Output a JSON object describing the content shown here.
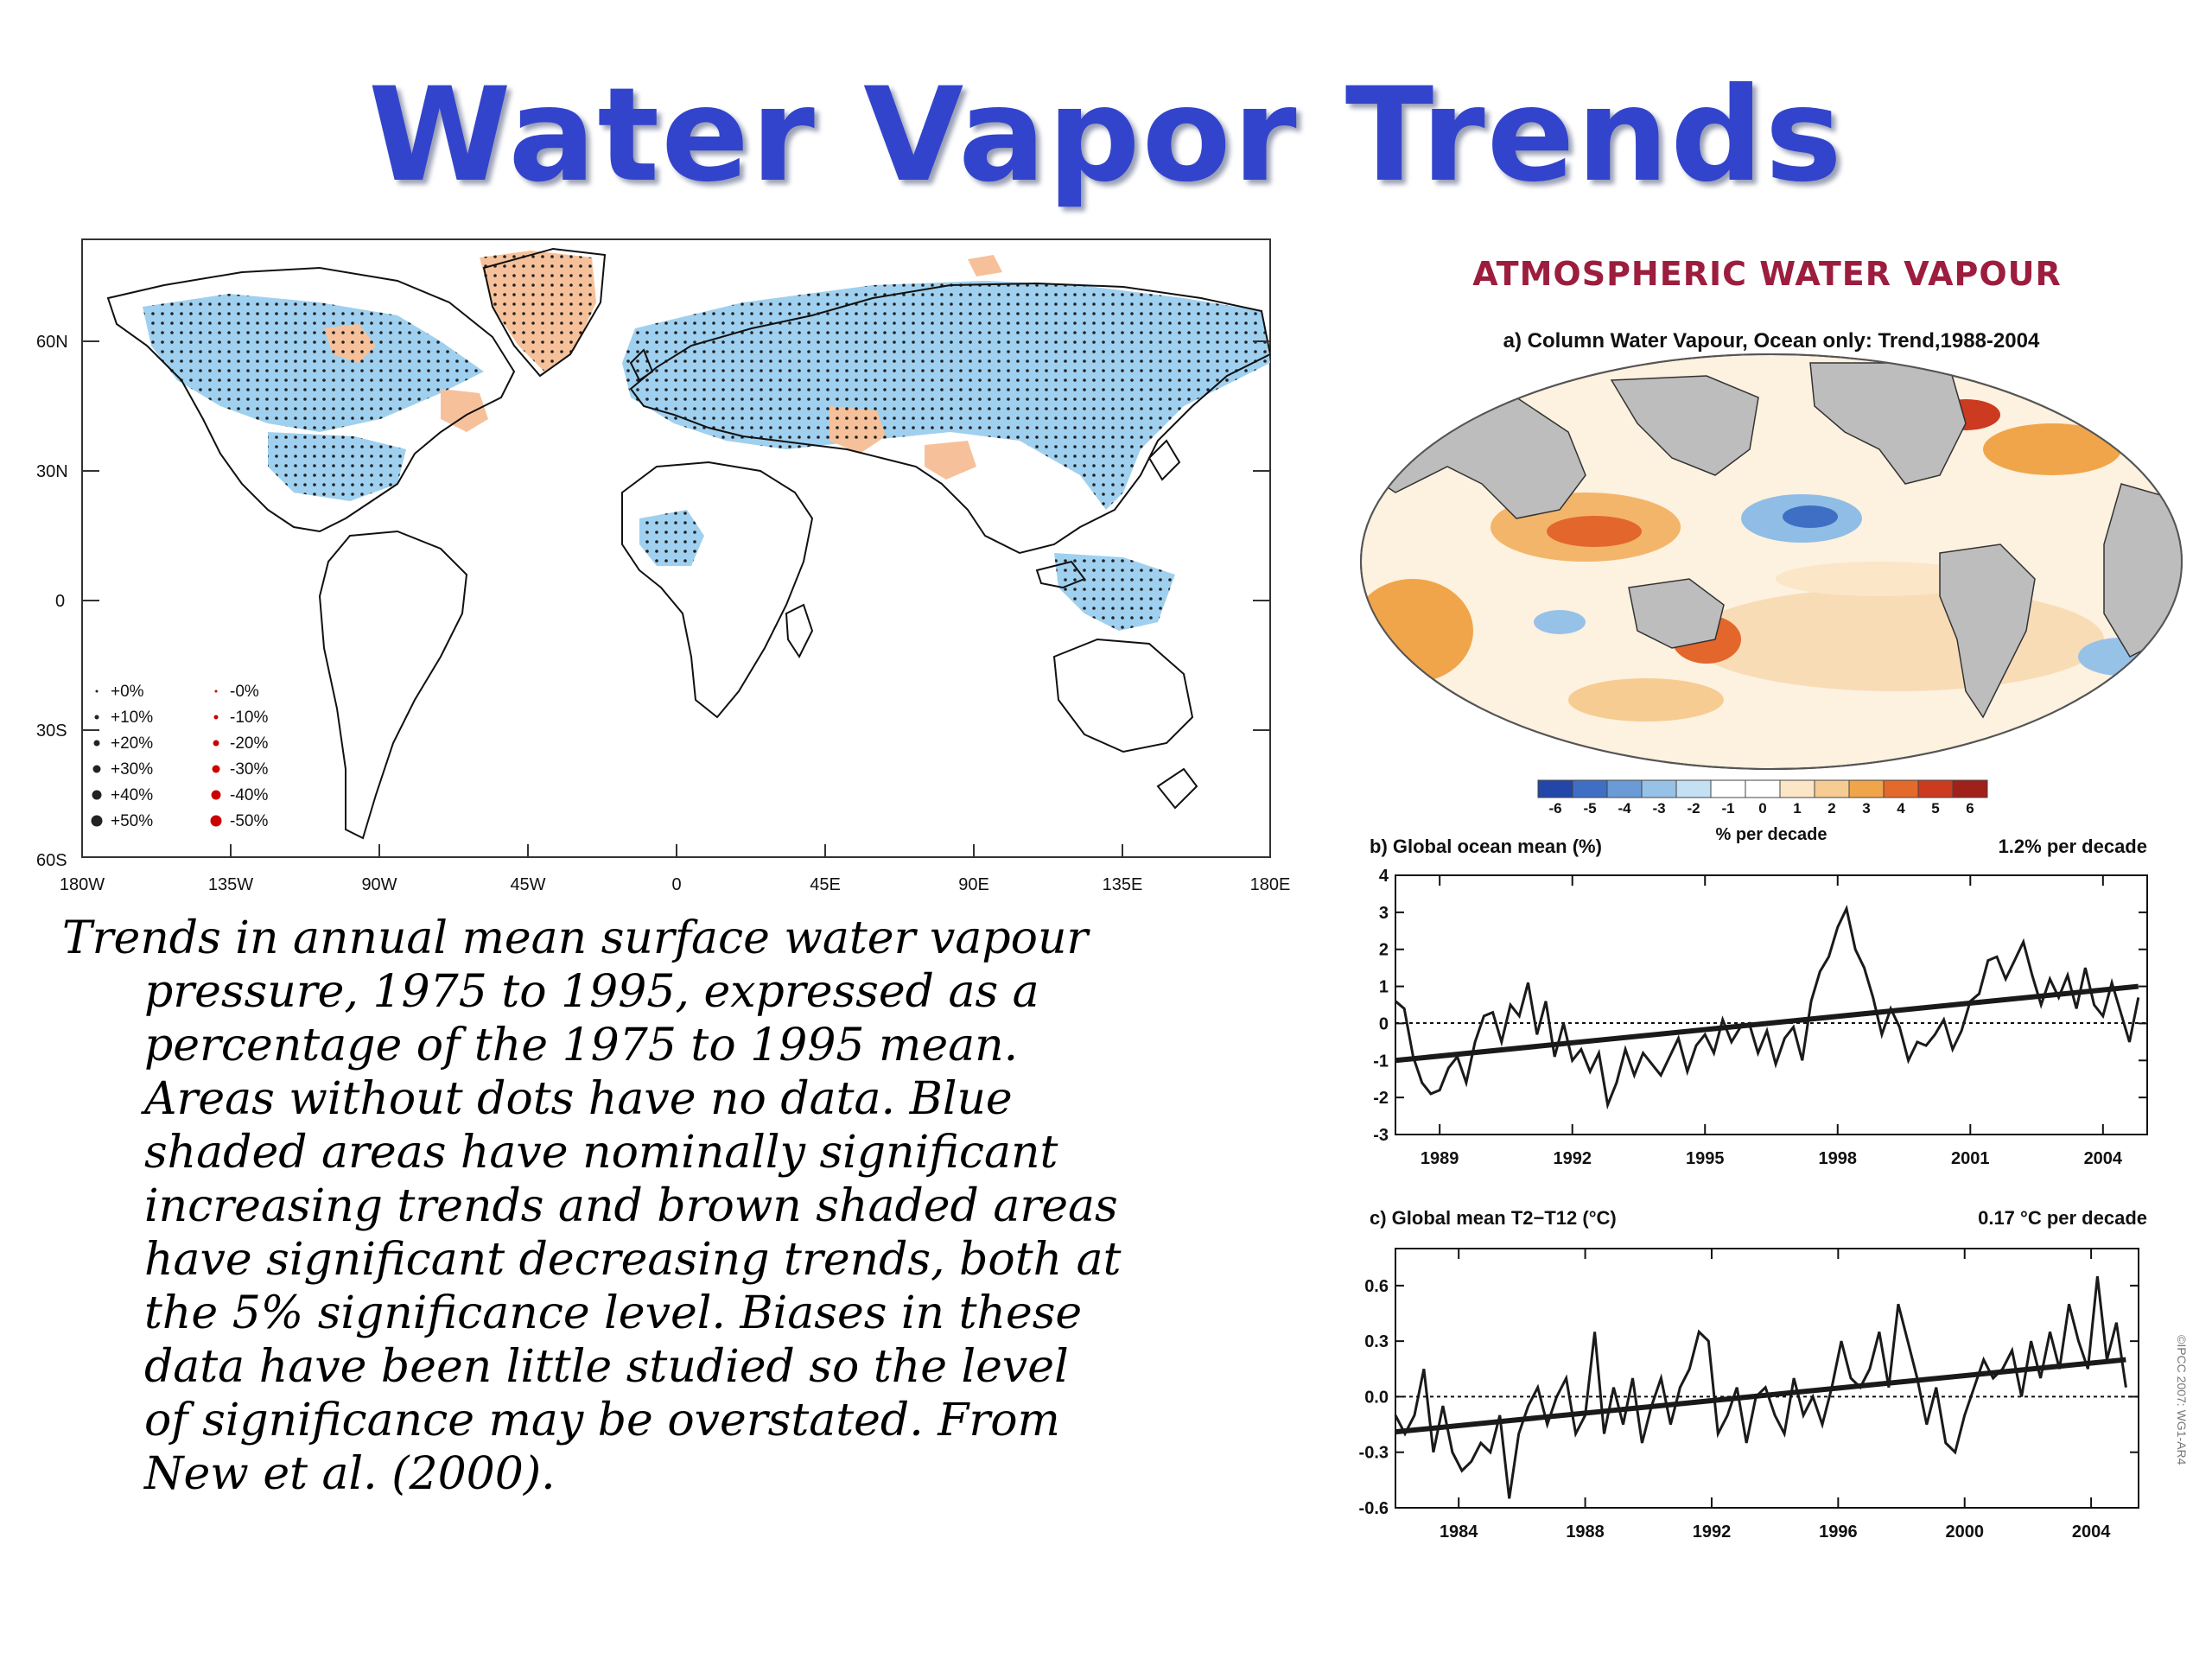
{
  "slide": {
    "title": "Water Vapor Trends",
    "caption_lines": [
      "Trends in annual mean surface water vapour",
      "pressure, 1975 to 1995, expressed as a",
      "percentage of the 1975 to 1995 mean.",
      "Areas without dots have no data. Blue",
      "shaded areas have nominally significant",
      "increasing trends and brown shaded areas",
      "have significant decreasing trends, both at",
      "the 5% significance level. Biases in these",
      "data have been little studied so the level",
      "of significance may be overstated. From",
      "New et al. (2000)."
    ],
    "right_heading": "ATMOSPHERIC WATER VAPOUR",
    "copyright": "©IPCC 2007: WG1-AR4"
  },
  "colors": {
    "title": "#3344cc",
    "heading": "#9c1d3d",
    "increase_blue": "#9fd0ef",
    "decrease_brown": "#f6c19a",
    "land_gray": "#bdbdbd",
    "trend_line": "#1a1a1a"
  },
  "left_map": {
    "lat_labels": [
      "60N",
      "30N",
      "0",
      "30S",
      "60S"
    ],
    "lon_labels": [
      "180W",
      "135W",
      "90W",
      "45W",
      "0",
      "45E",
      "90E",
      "135E",
      "180E"
    ],
    "legend": {
      "positive": [
        "+0%",
        "+10%",
        "+20%",
        "+30%",
        "+40%",
        "+50%"
      ],
      "negative": [
        "-0%",
        "-10%",
        "-20%",
        "-30%",
        "-40%",
        "-50%"
      ]
    }
  },
  "panel_a": {
    "title": "a) Column Water Vapour, Ocean only: Trend,1988-2004",
    "colorbar_ticks": [
      "-6",
      "-5",
      "-4",
      "-3",
      "-2",
      "-1",
      "0",
      "1",
      "2",
      "3",
      "4",
      "5",
      "6"
    ],
    "colorbar_colors": [
      "#2347a8",
      "#3f6fc4",
      "#6a9bd6",
      "#97c2e8",
      "#c4e0f3",
      "#ffffff",
      "#ffffff",
      "#fbe6c8",
      "#f6cc92",
      "#f0a54a",
      "#e36a2a",
      "#cc3a20",
      "#a0201a"
    ],
    "colorbar_label": "% per decade"
  },
  "chart_data": [
    {
      "type": "line",
      "title": "b) Global ocean mean (%)",
      "annotation": "1.2% per decade",
      "xticks": [
        "1989",
        "1992",
        "1995",
        "1998",
        "2001",
        "2004"
      ],
      "yticks": [
        "4",
        "3",
        "2",
        "1",
        "0",
        "-1",
        "-2",
        "-3"
      ],
      "xlim": [
        1988,
        2005
      ],
      "ylim": [
        -3,
        4
      ],
      "series": [
        {
          "x": [
            1988.0,
            1988.2,
            1988.4,
            1988.6,
            1988.8,
            1989.0,
            1989.2,
            1989.4,
            1989.6,
            1989.8,
            1990.0,
            1990.2,
            1990.4,
            1990.6,
            1990.8,
            1991.0,
            1991.2,
            1991.4,
            1991.6,
            1991.8,
            1992.0,
            1992.2,
            1992.4,
            1992.6,
            1992.8,
            1993.0,
            1993.2,
            1993.4,
            1993.6,
            1993.8,
            1994.0,
            1994.2,
            1994.4,
            1994.6,
            1994.8,
            1995.0,
            1995.2,
            1995.4,
            1995.6,
            1995.8,
            1996.0,
            1996.2,
            1996.4,
            1996.6,
            1996.8,
            1997.0,
            1997.2,
            1997.4,
            1997.6,
            1997.8,
            1998.0,
            1998.2,
            1998.4,
            1998.6,
            1998.8,
            1999.0,
            1999.2,
            1999.4,
            1999.6,
            1999.8,
            2000.0,
            2000.2,
            2000.4,
            2000.6,
            2000.8,
            2001.0,
            2001.2,
            2001.4,
            2001.6,
            2001.8,
            2002.0,
            2002.2,
            2002.4,
            2002.6,
            2002.8,
            2003.0,
            2003.2,
            2003.4,
            2003.6,
            2003.8,
            2004.0,
            2004.2,
            2004.4,
            2004.6,
            2004.8
          ],
          "values": [
            0.6,
            0.4,
            -0.9,
            -1.6,
            -1.9,
            -1.8,
            -1.2,
            -0.9,
            -1.6,
            -0.5,
            0.2,
            0.3,
            -0.5,
            0.5,
            0.2,
            1.1,
            -0.3,
            0.6,
            -0.9,
            0.0,
            -1.0,
            -0.7,
            -1.3,
            -0.8,
            -2.2,
            -1.6,
            -0.7,
            -1.4,
            -0.8,
            -1.1,
            -1.4,
            -0.9,
            -0.4,
            -1.3,
            -0.6,
            -0.3,
            -0.8,
            0.1,
            -0.5,
            -0.1,
            0.0,
            -0.8,
            -0.2,
            -1.1,
            -0.4,
            -0.1,
            -1.0,
            0.6,
            1.4,
            1.8,
            2.6,
            3.1,
            2.0,
            1.5,
            0.7,
            -0.3,
            0.4,
            -0.1,
            -1.0,
            -0.5,
            -0.6,
            -0.3,
            0.1,
            -0.7,
            -0.2,
            0.6,
            0.8,
            1.7,
            1.8,
            1.2,
            1.7,
            2.2,
            1.3,
            0.5,
            1.2,
            0.7,
            1.3,
            0.4,
            1.5,
            0.5,
            0.2,
            1.1,
            0.3,
            -0.5,
            0.7
          ]
        },
        {
          "name": "trend",
          "x": [
            1988.0,
            2004.8
          ],
          "values": [
            -1.0,
            1.0
          ]
        }
      ]
    },
    {
      "type": "line",
      "title": "c) Global mean T2−T12 (°C)",
      "annotation": "0.17 °C per decade",
      "xticks": [
        "1984",
        "1988",
        "1992",
        "1996",
        "2000",
        "2004"
      ],
      "yticks": [
        "0.6",
        "0.3",
        "0.0",
        "-0.3",
        "-0.6"
      ],
      "xlim": [
        1982,
        2005.5
      ],
      "ylim": [
        -0.6,
        0.8
      ],
      "series": [
        {
          "x": [
            1982.0,
            1982.3,
            1982.6,
            1982.9,
            1983.2,
            1983.5,
            1983.8,
            1984.1,
            1984.4,
            1984.7,
            1985.0,
            1985.3,
            1985.6,
            1985.9,
            1986.2,
            1986.5,
            1986.8,
            1987.1,
            1987.4,
            1987.7,
            1988.0,
            1988.3,
            1988.6,
            1988.9,
            1989.2,
            1989.5,
            1989.8,
            1990.1,
            1990.4,
            1990.7,
            1991.0,
            1991.3,
            1991.6,
            1991.9,
            1992.2,
            1992.5,
            1992.8,
            1993.1,
            1993.4,
            1993.7,
            1994.0,
            1994.3,
            1994.6,
            1994.9,
            1995.2,
            1995.5,
            1995.8,
            1996.1,
            1996.4,
            1996.7,
            1997.0,
            1997.3,
            1997.6,
            1997.9,
            1998.2,
            1998.5,
            1998.8,
            1999.1,
            1999.4,
            1999.7,
            2000.0,
            2000.3,
            2000.6,
            2000.9,
            2001.2,
            2001.5,
            2001.8,
            2002.1,
            2002.4,
            2002.7,
            2003.0,
            2003.3,
            2003.6,
            2003.9,
            2004.2,
            2004.5,
            2004.8,
            2005.1
          ],
          "values": [
            -0.1,
            -0.2,
            -0.1,
            0.15,
            -0.3,
            -0.05,
            -0.3,
            -0.4,
            -0.35,
            -0.25,
            -0.3,
            -0.1,
            -0.55,
            -0.2,
            -0.05,
            0.05,
            -0.15,
            0.0,
            0.1,
            -0.2,
            -0.1,
            0.35,
            -0.2,
            0.05,
            -0.15,
            0.1,
            -0.25,
            -0.05,
            0.1,
            -0.15,
            0.05,
            0.15,
            0.35,
            0.3,
            -0.2,
            -0.1,
            0.05,
            -0.25,
            0.0,
            0.05,
            -0.1,
            -0.2,
            0.1,
            -0.1,
            0.0,
            -0.15,
            0.05,
            0.3,
            0.1,
            0.05,
            0.15,
            0.35,
            0.05,
            0.5,
            0.3,
            0.1,
            -0.15,
            0.05,
            -0.25,
            -0.3,
            -0.1,
            0.05,
            0.2,
            0.1,
            0.15,
            0.25,
            0.0,
            0.3,
            0.1,
            0.35,
            0.15,
            0.5,
            0.3,
            0.15,
            0.65,
            0.2,
            0.4,
            0.05
          ]
        },
        {
          "name": "trend",
          "x": [
            1982.0,
            2005.1
          ],
          "values": [
            -0.19,
            0.2
          ]
        }
      ]
    }
  ]
}
